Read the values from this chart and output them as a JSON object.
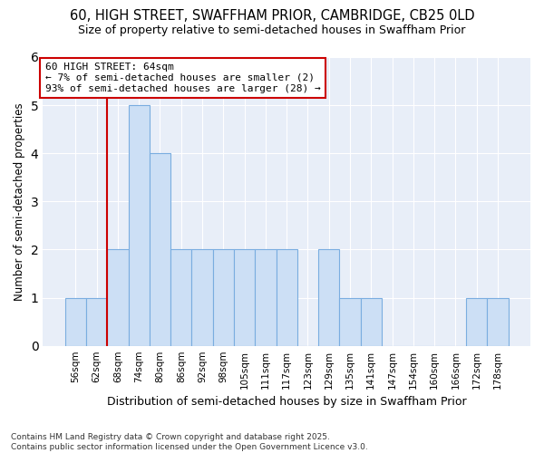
{
  "title_line1": "60, HIGH STREET, SWAFFHAM PRIOR, CAMBRIDGE, CB25 0LD",
  "title_line2": "Size of property relative to semi-detached houses in Swaffham Prior",
  "xlabel": "Distribution of semi-detached houses by size in Swaffham Prior",
  "ylabel": "Number of semi-detached properties",
  "categories": [
    "56sqm",
    "62sqm",
    "68sqm",
    "74sqm",
    "80sqm",
    "86sqm",
    "92sqm",
    "98sqm",
    "105sqm",
    "111sqm",
    "117sqm",
    "123sqm",
    "129sqm",
    "135sqm",
    "141sqm",
    "147sqm",
    "154sqm",
    "160sqm",
    "166sqm",
    "172sqm",
    "178sqm"
  ],
  "values": [
    1,
    1,
    2,
    5,
    4,
    2,
    2,
    2,
    2,
    2,
    2,
    0,
    2,
    1,
    1,
    0,
    0,
    0,
    0,
    1,
    1
  ],
  "bar_color": "#ccdff5",
  "bar_edge_color": "#7aade0",
  "vline_x": 1.5,
  "vline_color": "#cc0000",
  "annotation_text": "60 HIGH STREET: 64sqm\n← 7% of semi-detached houses are smaller (2)\n93% of semi-detached houses are larger (28) →",
  "annotation_box_color": "#ffffff",
  "annotation_box_edge": "#cc0000",
  "ylim": [
    0,
    6
  ],
  "yticks": [
    0,
    1,
    2,
    3,
    4,
    5,
    6
  ],
  "footer": "Contains HM Land Registry data © Crown copyright and database right 2025.\nContains public sector information licensed under the Open Government Licence v3.0.",
  "bg_color": "#ffffff",
  "plot_bg_color": "#e8eef8",
  "grid_color": "#ffffff"
}
